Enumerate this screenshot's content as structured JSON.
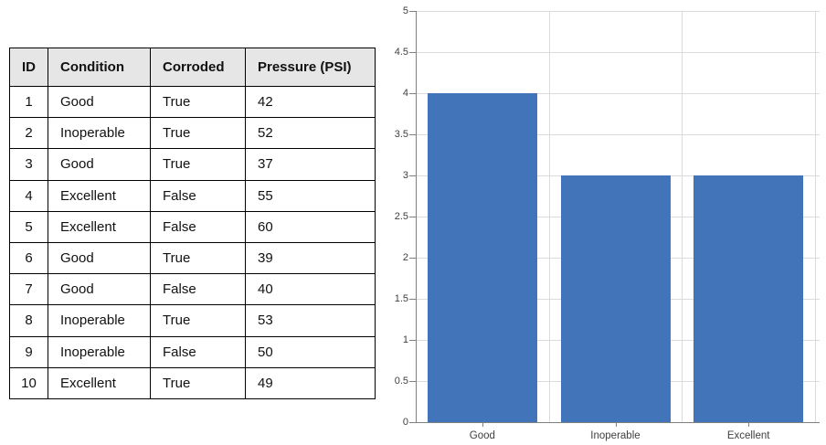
{
  "table": {
    "headers": [
      "ID",
      "Condition",
      "Corroded",
      "Pressure (PSI)"
    ],
    "rows": [
      [
        "1",
        "Good",
        "True",
        "42"
      ],
      [
        "2",
        "Inoperable",
        "True",
        "52"
      ],
      [
        "3",
        "Good",
        "True",
        "37"
      ],
      [
        "4",
        "Excellent",
        "False",
        "55"
      ],
      [
        "5",
        "Excellent",
        "False",
        "60"
      ],
      [
        "6",
        "Good",
        "True",
        "39"
      ],
      [
        "7",
        "Good",
        "False",
        "40"
      ],
      [
        "8",
        "Inoperable",
        "True",
        "53"
      ],
      [
        "9",
        "Inoperable",
        "False",
        "50"
      ],
      [
        "10",
        "Excellent",
        "True",
        "49"
      ]
    ],
    "header_bg": "#E7E6E6",
    "border_color": "#000000"
  },
  "chart_data": {
    "type": "bar",
    "categories": [
      "Good",
      "Inoperable",
      "Excellent"
    ],
    "values": [
      4,
      3,
      3
    ],
    "title": "",
    "xlabel": "",
    "ylabel": "",
    "ylim": [
      0,
      5
    ],
    "ytick_step": 0.5,
    "grid": true,
    "legend": false,
    "bar_color": "#4274B9",
    "gridline_color": "#DBDBDB",
    "axis_color": "#808080",
    "label_color": "#404040"
  }
}
